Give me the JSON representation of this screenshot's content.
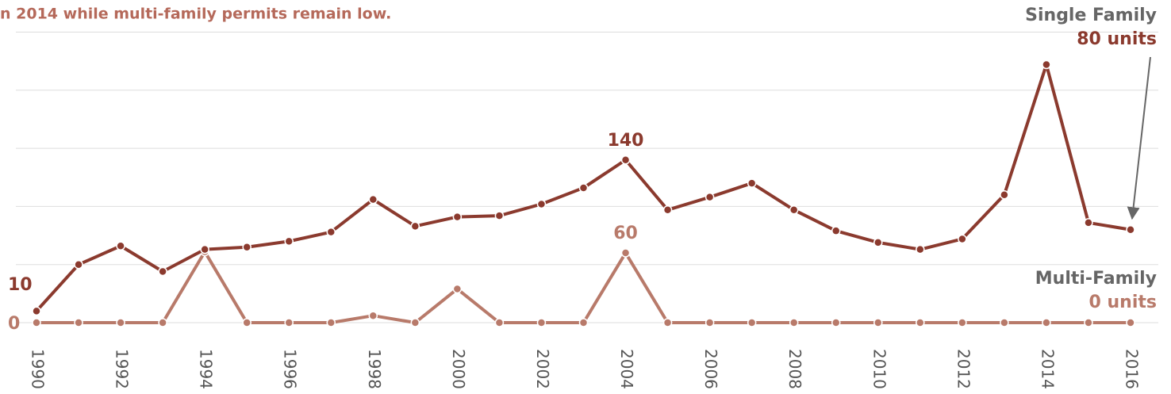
{
  "chart_data": {
    "type": "line",
    "title": "n 2014 while multi-family permits remain low.",
    "x": [
      1990,
      1991,
      1992,
      1993,
      1994,
      1995,
      1996,
      1997,
      1998,
      1999,
      2000,
      2001,
      2002,
      2003,
      2004,
      2005,
      2006,
      2007,
      2008,
      2009,
      2010,
      2011,
      2012,
      2013,
      2014,
      2015,
      2016
    ],
    "xlim": [
      1990,
      2016
    ],
    "xticks": [
      1990,
      1992,
      1994,
      1996,
      1998,
      2000,
      2002,
      2004,
      2006,
      2008,
      2010,
      2012,
      2014,
      2016
    ],
    "ylim": [
      0,
      277
    ],
    "yticks": [
      0,
      50,
      100,
      150,
      200,
      250
    ],
    "grid": true,
    "series": [
      {
        "name": "Single Family",
        "color": "#8b3a2e",
        "values": [
          10,
          50,
          66,
          44,
          63,
          65,
          70,
          78,
          106,
          83,
          91,
          92,
          102,
          116,
          140,
          97,
          108,
          120,
          97,
          79,
          69,
          63,
          72,
          110,
          222,
          86,
          80
        ],
        "value_labels": [
          "10",
          null,
          null,
          null,
          null,
          null,
          null,
          null,
          null,
          null,
          null,
          null,
          null,
          null,
          "140",
          null,
          null,
          null,
          null,
          null,
          null,
          null,
          null,
          null,
          null,
          null,
          "80 units"
        ]
      },
      {
        "name": "Multi-Family",
        "color": "#b87a6a",
        "values": [
          0,
          0,
          0,
          0,
          61,
          0,
          0,
          0,
          6,
          0,
          29,
          0,
          0,
          0,
          60,
          0,
          0,
          0,
          0,
          0,
          0,
          0,
          0,
          0,
          0,
          0,
          0
        ],
        "value_labels": [
          "0",
          null,
          null,
          null,
          null,
          null,
          null,
          null,
          null,
          null,
          null,
          null,
          null,
          null,
          "60",
          null,
          null,
          null,
          null,
          null,
          null,
          null,
          null,
          null,
          null,
          null,
          "0 units"
        ]
      }
    ]
  }
}
